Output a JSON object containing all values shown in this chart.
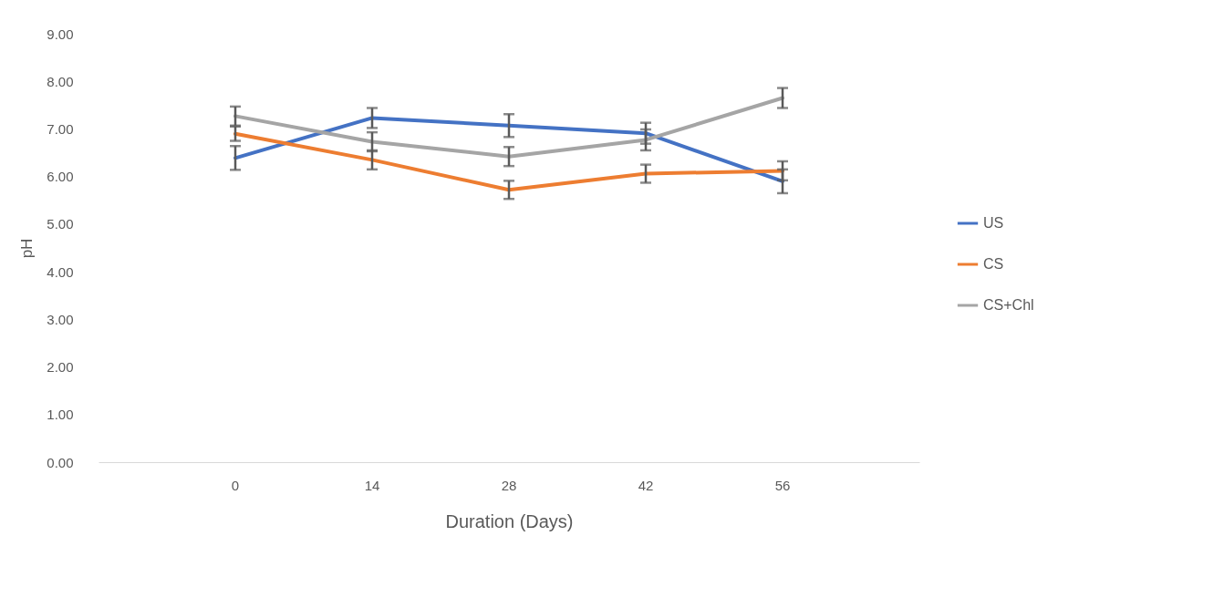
{
  "chart_data": {
    "type": "line",
    "xlabel": "Duration (Days)",
    "ylabel": "pH",
    "categories": [
      "0",
      "14",
      "28",
      "42",
      "56"
    ],
    "series": [
      {
        "name": "US",
        "color": "#4472c4",
        "values": [
          6.39,
          7.23,
          7.07,
          6.91,
          5.9
        ],
        "errors": [
          0.25,
          0.21,
          0.24,
          0.22,
          0.25
        ]
      },
      {
        "name": "CS",
        "color": "#ed7d31",
        "values": [
          6.9,
          6.35,
          5.72,
          6.06,
          6.12
        ],
        "errors": [
          0.15,
          0.2,
          0.19,
          0.19,
          0.2
        ]
      },
      {
        "name": "CS+Chl",
        "color": "#a5a5a5",
        "values": [
          7.27,
          6.73,
          6.42,
          6.77,
          7.65
        ],
        "errors": [
          0.2,
          0.2,
          0.2,
          0.22,
          0.21
        ]
      }
    ],
    "ylim": [
      0,
      9
    ],
    "yticks": [
      {
        "value": 0,
        "label": "0.00"
      },
      {
        "value": 1,
        "label": "1.00"
      },
      {
        "value": 2,
        "label": "2.00"
      },
      {
        "value": 3,
        "label": "3.00"
      },
      {
        "value": 4,
        "label": "4.00"
      },
      {
        "value": 5,
        "label": "5.00"
      },
      {
        "value": 6,
        "label": "6.00"
      },
      {
        "value": 7,
        "label": "7.00"
      },
      {
        "value": 8,
        "label": "8.00"
      },
      {
        "value": 9,
        "label": "9.00"
      }
    ],
    "grid": false,
    "legend": "right",
    "marker": "none",
    "line_style": "solid"
  }
}
